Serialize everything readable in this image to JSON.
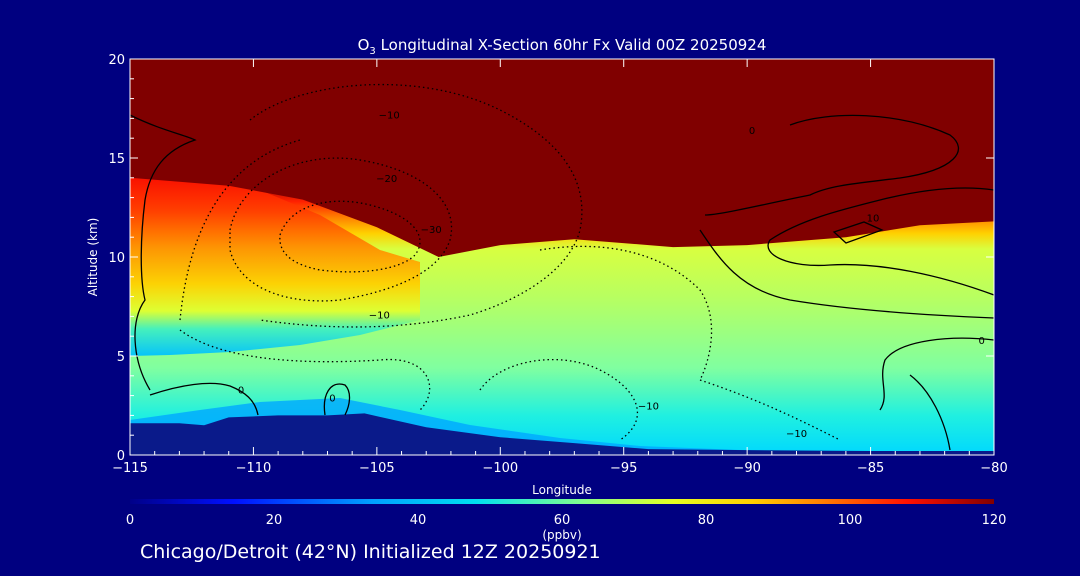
{
  "chart_data": {
    "type": "heatmap",
    "title_species": "O",
    "title_subscript": "3",
    "title_rest": " Longitudinal X-Section 60hr  Fx Valid 00Z 20250924",
    "xlabel": "Longitude",
    "ylabel": "Altitude (km)",
    "xlim": [
      -115,
      -80
    ],
    "ylim": [
      0,
      20
    ],
    "x_ticks": [
      -115,
      -110,
      -105,
      -100,
      -95,
      -90,
      -85,
      -80
    ],
    "x_tick_labels": [
      "−115",
      "−110",
      "−105",
      "−100",
      "−95",
      "−90",
      "−85",
      "−80"
    ],
    "y_ticks": [
      0,
      5,
      10,
      15,
      20
    ],
    "y_tick_labels": [
      "0",
      "5",
      "10",
      "15",
      "20"
    ],
    "colorbar": {
      "ticks": [
        0,
        20,
        40,
        60,
        80,
        100,
        120
      ],
      "tick_labels": [
        "0",
        "20",
        "40",
        "60",
        "80",
        "100",
        "120"
      ],
      "unit_label": "(ppbv)",
      "range": [
        0,
        120
      ]
    },
    "contour_labels": [
      {
        "text": "−10",
        "lon": -104.5,
        "alt": 17.0
      },
      {
        "text": "−20",
        "lon": -104.6,
        "alt": 13.8
      },
      {
        "text": "−30",
        "lon": -102.8,
        "alt": 11.2
      },
      {
        "text": "−10",
        "lon": -104.9,
        "alt": 6.9
      },
      {
        "text": "0",
        "lon": -110.5,
        "alt": 3.1
      },
      {
        "text": "0",
        "lon": -106.8,
        "alt": 2.7
      },
      {
        "text": "−10",
        "lon": -94.0,
        "alt": 2.3
      },
      {
        "text": "−10",
        "lon": -88.0,
        "alt": 0.9
      },
      {
        "text": "0",
        "lon": -89.8,
        "alt": 16.2
      },
      {
        "text": "10",
        "lon": -84.9,
        "alt": 11.8
      },
      {
        "text": "0",
        "lon": -80.5,
        "alt": 5.6
      }
    ],
    "tropopause_km": [
      {
        "lon": -115,
        "alt": 14.0
      },
      {
        "lon": -111,
        "alt": 13.6
      },
      {
        "lon": -108,
        "alt": 12.9
      },
      {
        "lon": -105,
        "alt": 11.5
      },
      {
        "lon": -102.5,
        "alt": 10.0
      },
      {
        "lon": -100,
        "alt": 10.6
      },
      {
        "lon": -97,
        "alt": 10.9
      },
      {
        "lon": -93,
        "alt": 10.5
      },
      {
        "lon": -90,
        "alt": 10.6
      },
      {
        "lon": -86,
        "alt": 11.0
      },
      {
        "lon": -83,
        "alt": 11.6
      },
      {
        "lon": -80,
        "alt": 11.8
      }
    ],
    "terrain_km": [
      {
        "lon": -115,
        "alt": 1.6
      },
      {
        "lon": -113,
        "alt": 1.6
      },
      {
        "lon": -112,
        "alt": 1.5
      },
      {
        "lon": -111,
        "alt": 1.9
      },
      {
        "lon": -109,
        "alt": 2.0
      },
      {
        "lon": -107,
        "alt": 2.0
      },
      {
        "lon": -105.5,
        "alt": 2.1
      },
      {
        "lon": -103,
        "alt": 1.4
      },
      {
        "lon": -100,
        "alt": 0.9
      },
      {
        "lon": -97,
        "alt": 0.6
      },
      {
        "lon": -94,
        "alt": 0.3
      },
      {
        "lon": -90,
        "alt": 0.25
      },
      {
        "lon": -85,
        "alt": 0.2
      },
      {
        "lon": -82,
        "alt": 0.2
      },
      {
        "lon": -80,
        "alt": 0.2
      }
    ]
  },
  "footer": "Chicago/Detroit (42°N) Initialized 12Z 20250921",
  "colors": {
    "background": "#000080",
    "foreground": "#ffffff",
    "stratosphere": "#800000",
    "terrain": "#0a1a8a"
  }
}
